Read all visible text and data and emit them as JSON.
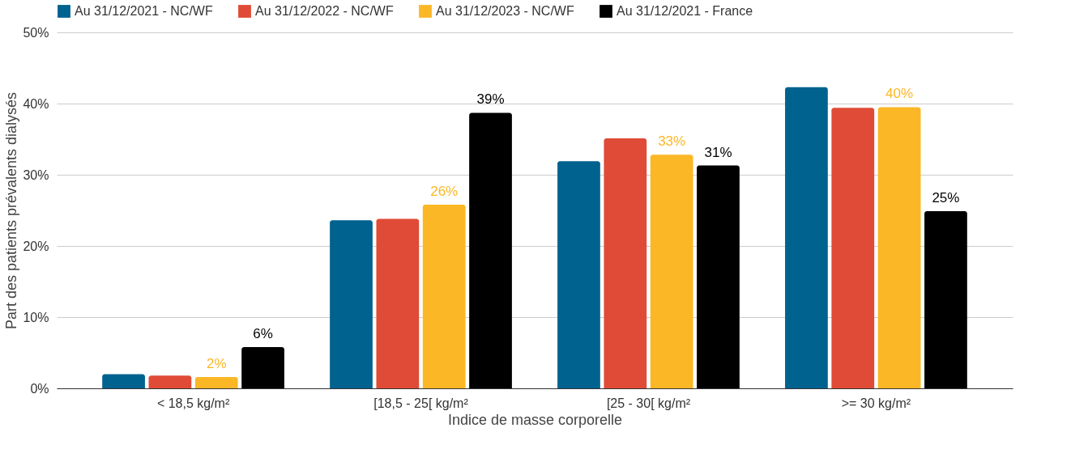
{
  "chart_data": {
    "type": "bar",
    "xlabel": "Indice de masse corporelle",
    "ylabel": "Part des patients prévalents dialysés",
    "categories": [
      "< 18,5 kg/m²",
      "[18,5 - 25[ kg/m²",
      "[25 - 30[ kg/m²",
      ">= 30 kg/m²"
    ],
    "series": [
      {
        "name": "Au 31/12/2021 - NC/WF",
        "color": "#00628f",
        "values": [
          2.0,
          23.6,
          31.9,
          42.3
        ]
      },
      {
        "name": "Au 31/12/2022 - NC/WF",
        "color": "#e04b37",
        "values": [
          1.8,
          23.8,
          35.1,
          39.4
        ]
      },
      {
        "name": "Au 31/12/2023 - NC/WF",
        "color": "#fbb726",
        "values": [
          1.6,
          25.8,
          32.8,
          39.5
        ],
        "value_labels": [
          "2%",
          "26%",
          "33%",
          "40%"
        ]
      },
      {
        "name": "Au 31/12/2021 - France",
        "color": "#000000",
        "values": [
          5.8,
          38.7,
          31.3,
          24.9
        ],
        "value_labels": [
          "6%",
          "39%",
          "31%",
          "25%"
        ]
      }
    ],
    "ylim": [
      0,
      50
    ],
    "yticks": [
      {
        "value": 0,
        "label": "0%"
      },
      {
        "value": 10,
        "label": "10%"
      },
      {
        "value": 20,
        "label": "20%"
      },
      {
        "value": 30,
        "label": "30%"
      },
      {
        "value": 40,
        "label": "40%"
      },
      {
        "value": 50,
        "label": "50%"
      }
    ],
    "grid": "y",
    "legend": "top"
  }
}
